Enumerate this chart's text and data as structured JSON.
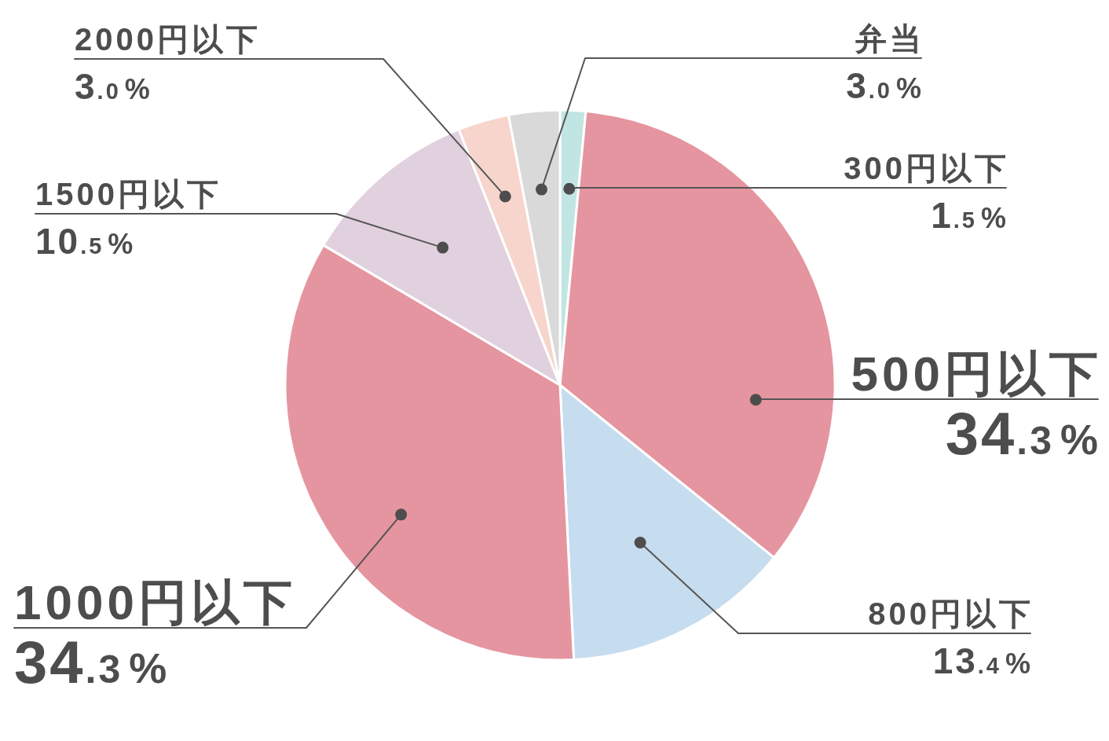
{
  "chart_data": {
    "type": "pie",
    "categories": [
      "300円以下",
      "500円以下",
      "800円以下",
      "1000円以下",
      "1500円以下",
      "2000円以下",
      "弁当"
    ],
    "values": [
      1.5,
      34.3,
      13.4,
      34.3,
      10.5,
      3.0,
      3.0
    ],
    "colors": [
      "#c1e5e3",
      "#e5959f",
      "#c6dcef",
      "#e5959f",
      "#e1d1df",
      "#f7d5cc",
      "#d9d9d9"
    ],
    "value_labels": [
      "1.5%",
      "34.3%",
      "13.4%",
      "34.3%",
      "10.5%",
      "3.0%",
      "3.0%"
    ]
  }
}
